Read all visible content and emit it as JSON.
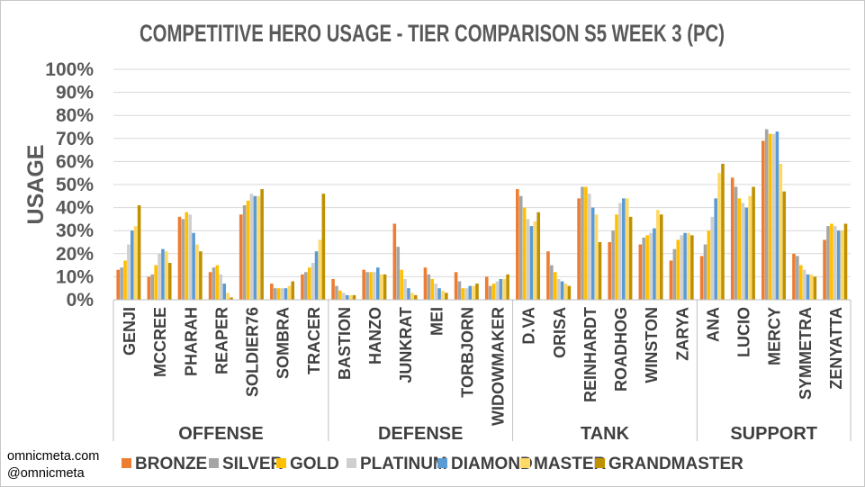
{
  "chart_data": {
    "type": "bar",
    "title": "COMPETITIVE HERO USAGE - TIER COMPARISON S5 WEEK 3 (PC)",
    "ylabel": "USAGE",
    "xlabel": "",
    "ylim": [
      0,
      100
    ],
    "yticks": [
      "0%",
      "10%",
      "20%",
      "30%",
      "40%",
      "50%",
      "60%",
      "70%",
      "80%",
      "90%",
      "100%"
    ],
    "legend_position": "bottom",
    "groups": [
      {
        "name": "OFFENSE",
        "heroes": [
          "GENJI",
          "MCCREE",
          "PHARAH",
          "REAPER",
          "SOLDIER76",
          "SOMBRA",
          "TRACER"
        ]
      },
      {
        "name": "DEFENSE",
        "heroes": [
          "BASTION",
          "HANZO",
          "JUNKRAT",
          "MEI",
          "TORBJORN",
          "WIDOWMAKER"
        ]
      },
      {
        "name": "TANK",
        "heroes": [
          "D.VA",
          "ORISA",
          "REINHARDT",
          "ROADHOG",
          "WINSTON",
          "ZARYA"
        ]
      },
      {
        "name": "SUPPORT",
        "heroes": [
          "ANA",
          "LUCIO",
          "MERCY",
          "SYMMETRA",
          "ZENYATTA"
        ]
      }
    ],
    "series": [
      {
        "name": "BRONZE",
        "color": "#ed7d31",
        "values": [
          13,
          10,
          36,
          12,
          37,
          7,
          11,
          9,
          13,
          33,
          14,
          12,
          10,
          48,
          21,
          44,
          25,
          24,
          17,
          19,
          53,
          69,
          20,
          26
        ]
      },
      {
        "name": "SILVER",
        "color": "#a5a5a5",
        "values": [
          14,
          11,
          35,
          14,
          41,
          5,
          12,
          6,
          12,
          23,
          11,
          8,
          6,
          45,
          15,
          49,
          30,
          27,
          22,
          24,
          49,
          74,
          19,
          32
        ]
      },
      {
        "name": "GOLD",
        "color": "#ffc000",
        "values": [
          17,
          15,
          38,
          15,
          43,
          5,
          14,
          4,
          12,
          13,
          9,
          5,
          7,
          40,
          12,
          49,
          37,
          28,
          26,
          30,
          44,
          72,
          15,
          33
        ]
      },
      {
        "name": "PLATINUM",
        "color": "#cfcfcf",
        "values": [
          24,
          20,
          37,
          11,
          46,
          5,
          16,
          3,
          12,
          9,
          7,
          5,
          8,
          35,
          9,
          46,
          42,
          29,
          28,
          36,
          42,
          72,
          13,
          32
        ]
      },
      {
        "name": "DIAMOND",
        "color": "#5b9bd5",
        "values": [
          30,
          22,
          29,
          7,
          45,
          5,
          21,
          2,
          14,
          5,
          5,
          6,
          9,
          32,
          8,
          40,
          44,
          31,
          29,
          44,
          40,
          73,
          11,
          30
        ]
      },
      {
        "name": "MASTER",
        "color": "#ffd966",
        "values": [
          32,
          21,
          24,
          3,
          45,
          6,
          26,
          2,
          11,
          3,
          4,
          6,
          9,
          34,
          7,
          37,
          44,
          39,
          29,
          55,
          45,
          59,
          11,
          30
        ]
      },
      {
        "name": "GRANDMASTER",
        "color": "#bf9000",
        "values": [
          41,
          16,
          21,
          1,
          48,
          8,
          46,
          2,
          11,
          2,
          3,
          7,
          11,
          38,
          6,
          25,
          36,
          37,
          28,
          59,
          49,
          47,
          10,
          33
        ]
      }
    ]
  },
  "credits": {
    "site": "omnicmeta.com",
    "handle": "@omnicmeta"
  }
}
